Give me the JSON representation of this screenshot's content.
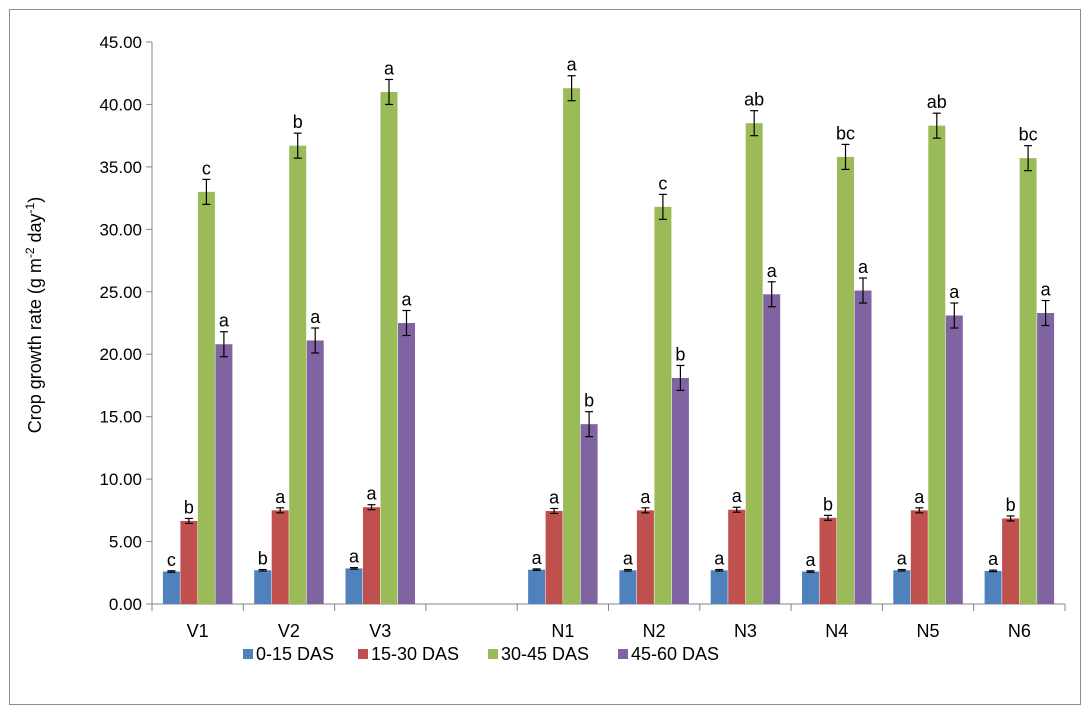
{
  "chart_data": {
    "type": "bar",
    "ylabel": "Crop growth rate (g m",
    "ylabel_sup1": "-2",
    "ylabel_mid": " day",
    "ylabel_sup2": "-1",
    "ylabel_end": ")",
    "ylim": [
      0,
      45
    ],
    "yticks": [
      "0.00",
      "5.00",
      "10.00",
      "15.00",
      "20.00",
      "25.00",
      "30.00",
      "35.00",
      "40.00",
      "45.00"
    ],
    "categories": [
      "V1",
      "V2",
      "V3",
      "",
      "N1",
      "N2",
      "N3",
      "N4",
      "N5",
      "N6"
    ],
    "series": [
      {
        "name": "0-15 DAS",
        "color": "#4F81BD",
        "values": [
          2.6,
          2.7,
          2.85,
          null,
          2.75,
          2.7,
          2.7,
          2.6,
          2.7,
          2.65
        ],
        "errors": [
          0.06,
          0.06,
          0.06,
          null,
          0.06,
          0.06,
          0.06,
          0.06,
          0.06,
          0.06
        ],
        "labels": [
          "c",
          "b",
          "a",
          "",
          "a",
          "a",
          "a",
          "a",
          "a",
          "a"
        ]
      },
      {
        "name": "15-30 DAS",
        "color": "#C0504D",
        "values": [
          6.65,
          7.5,
          7.75,
          null,
          7.45,
          7.5,
          7.55,
          6.9,
          7.5,
          6.85
        ],
        "errors": [
          0.2,
          0.2,
          0.2,
          null,
          0.2,
          0.2,
          0.2,
          0.2,
          0.2,
          0.2
        ],
        "labels": [
          "b",
          "a",
          "a",
          "",
          "a",
          "a",
          "a",
          "b",
          "a",
          "b"
        ]
      },
      {
        "name": "30-45 DAS",
        "color": "#9BBB59",
        "values": [
          33.0,
          36.7,
          41.0,
          null,
          41.3,
          31.8,
          38.5,
          35.8,
          38.3,
          35.7
        ],
        "errors": [
          1.0,
          1.0,
          1.0,
          null,
          1.0,
          1.0,
          1.0,
          1.0,
          1.0,
          1.0
        ],
        "labels": [
          "c",
          "b",
          "a",
          "",
          "a",
          "c",
          "ab",
          "bc",
          "ab",
          "bc"
        ]
      },
      {
        "name": "45-60 DAS",
        "color": "#8064A2",
        "values": [
          20.8,
          21.1,
          22.5,
          null,
          14.4,
          18.1,
          24.8,
          25.1,
          23.1,
          23.3
        ],
        "errors": [
          1.0,
          1.0,
          1.0,
          null,
          1.0,
          1.0,
          1.0,
          1.0,
          1.0,
          1.0
        ],
        "labels": [
          "a",
          "a",
          "a",
          "",
          "b",
          "b",
          "a",
          "a",
          "a",
          "a"
        ]
      }
    ],
    "grid": false,
    "legend_position": "bottom"
  }
}
